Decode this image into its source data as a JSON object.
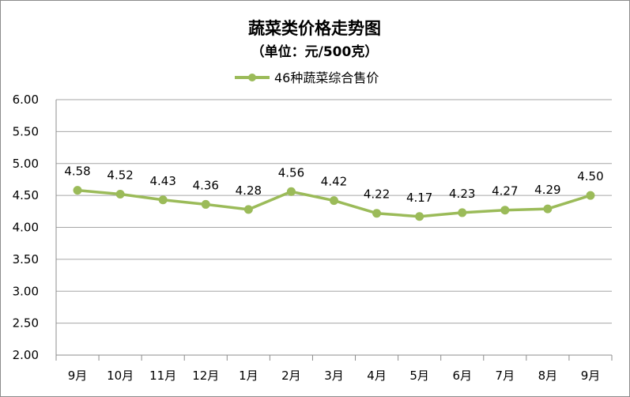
{
  "chart_data": {
    "type": "line",
    "title": "蔬菜类价格走势图",
    "subtitle": "（单位：元/500克）",
    "categories": [
      "9月",
      "10月",
      "11月",
      "12月",
      "1月",
      "2月",
      "3月",
      "4月",
      "5月",
      "6月",
      "7月",
      "8月",
      "9月"
    ],
    "series": [
      {
        "name": "46种蔬菜综合售价",
        "values": [
          4.58,
          4.52,
          4.43,
          4.36,
          4.28,
          4.56,
          4.42,
          4.22,
          4.17,
          4.23,
          4.27,
          4.29,
          4.5
        ],
        "color": "#9bbb59"
      }
    ],
    "ylim": [
      2.0,
      6.0
    ],
    "ytick_step": 0.5,
    "grid": true,
    "legend_position": "top",
    "xlabel": "",
    "ylabel": ""
  }
}
